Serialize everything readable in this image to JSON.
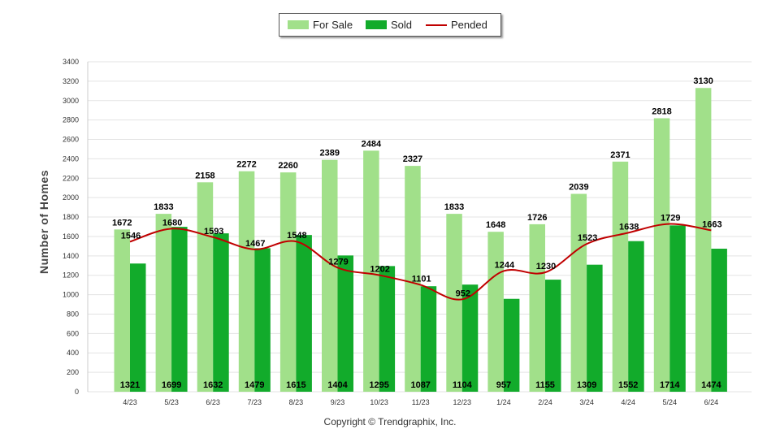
{
  "chart_data": {
    "type": "bar",
    "categories": [
      "4/23",
      "5/23",
      "6/23",
      "7/23",
      "8/23",
      "9/23",
      "10/23",
      "11/23",
      "12/23",
      "1/24",
      "2/24",
      "3/24",
      "4/24",
      "5/24",
      "6/24"
    ],
    "series": [
      {
        "name": "For Sale",
        "kind": "bar",
        "color": "#a1e08a",
        "values": [
          1672,
          1833,
          2158,
          2272,
          2260,
          2389,
          2484,
          2327,
          1833,
          1648,
          1726,
          2039,
          2371,
          2818,
          3130
        ]
      },
      {
        "name": "Sold",
        "kind": "bar",
        "color": "#12ab2b",
        "values": [
          1321,
          1699,
          1632,
          1479,
          1615,
          1404,
          1295,
          1087,
          1104,
          957,
          1155,
          1309,
          1552,
          1714,
          1474
        ]
      },
      {
        "name": "Pended",
        "kind": "line",
        "color": "#c00000",
        "values": [
          1546,
          1680,
          1593,
          1467,
          1548,
          1279,
          1202,
          1101,
          952,
          1244,
          1230,
          1523,
          1638,
          1729,
          1663
        ]
      }
    ],
    "ylabel": "Number of Homes",
    "xlabel": "",
    "ylim": [
      0,
      3400
    ],
    "ytick_step": 200,
    "grid": true,
    "legend": "top-center"
  },
  "legend": {
    "for_sale": "For Sale",
    "sold": "Sold",
    "pended": "Pended"
  },
  "copyright": "Copyright © Trendgraphix, Inc."
}
